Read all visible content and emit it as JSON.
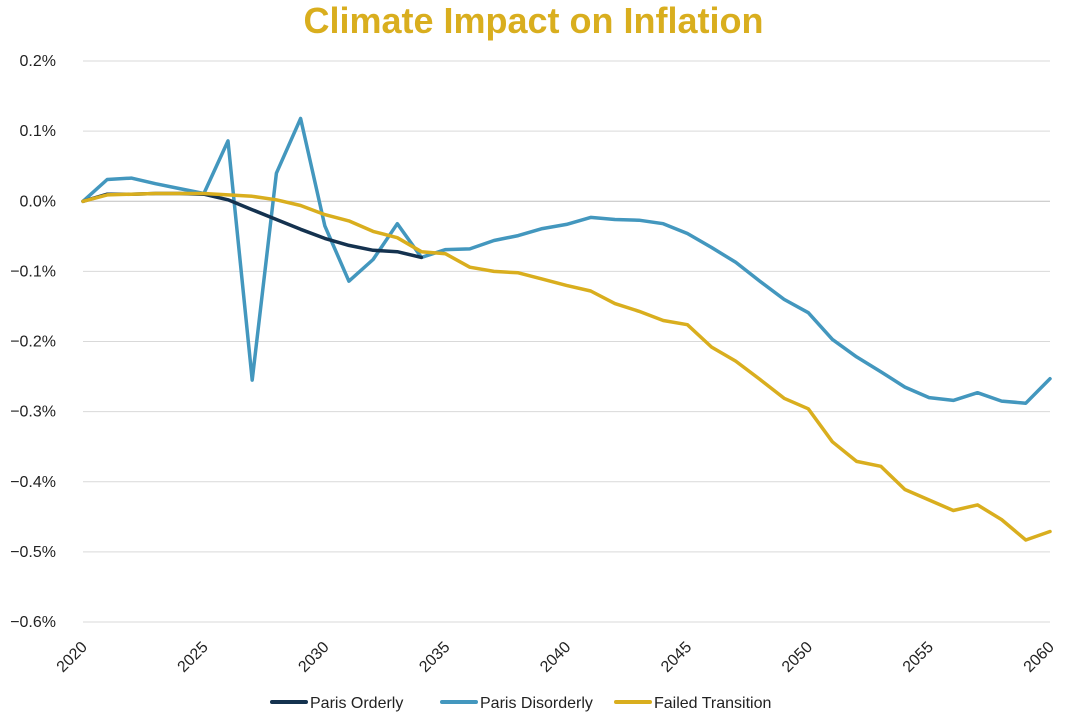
{
  "chart_data": {
    "type": "line",
    "title": "Climate Impact on Inflation",
    "xlabel": "",
    "ylabel": "",
    "xlim": [
      2020,
      2060
    ],
    "ylim": [
      -0.6,
      0.2
    ],
    "x_ticks": [
      2020,
      2025,
      2030,
      2035,
      2040,
      2045,
      2050,
      2055,
      2060
    ],
    "x_tick_labels": [
      "2020",
      "2025",
      "2030",
      "2035",
      "2040",
      "2045",
      "2050",
      "2055",
      "2060"
    ],
    "y_ticks": [
      0.2,
      0.1,
      0.0,
      -0.1,
      -0.2,
      -0.3,
      -0.4,
      -0.5,
      -0.6
    ],
    "y_tick_labels": [
      "0.2%",
      "0.1%",
      "0.0%",
      "−0.1%",
      "−0.2%",
      "−0.3%",
      "−0.4%",
      "−0.5%",
      "−0.6%"
    ],
    "grid": true,
    "legend_position": "bottom-center",
    "series": [
      {
        "name": "Paris Orderly",
        "color": "#14324F",
        "x": [
          2020,
          2021,
          2022,
          2023,
          2024,
          2025,
          2026,
          2027,
          2028,
          2029,
          2030,
          2031,
          2032,
          2033,
          2034
        ],
        "values": [
          0.0,
          0.01,
          0.01,
          0.011,
          0.011,
          0.01,
          0.002,
          -0.012,
          -0.026,
          -0.04,
          -0.053,
          -0.063,
          -0.07,
          -0.072,
          -0.08
        ]
      },
      {
        "name": "Paris Disorderly",
        "color": "#4397BE",
        "x": [
          2020,
          2021,
          2022,
          2023,
          2024,
          2025,
          2026,
          2027,
          2028,
          2029,
          2030,
          2031,
          2032,
          2033,
          2034,
          2035,
          2036,
          2037,
          2038,
          2039,
          2040,
          2041,
          2042,
          2043,
          2044,
          2045,
          2046,
          2047,
          2048,
          2049,
          2050,
          2051,
          2052,
          2053,
          2054,
          2055,
          2056,
          2057,
          2058,
          2059,
          2060
        ],
        "values": [
          0.0,
          0.031,
          0.033,
          0.025,
          0.018,
          0.011,
          0.086,
          -0.255,
          0.04,
          0.118,
          -0.035,
          -0.114,
          -0.083,
          -0.032,
          -0.08,
          -0.069,
          -0.068,
          -0.056,
          -0.049,
          -0.039,
          -0.033,
          -0.023,
          -0.026,
          -0.027,
          -0.032,
          -0.046,
          -0.066,
          -0.087,
          -0.114,
          -0.14,
          -0.159,
          -0.197,
          -0.222,
          -0.243,
          -0.265,
          -0.28,
          -0.284,
          -0.273,
          -0.285,
          -0.288,
          -0.253
        ]
      },
      {
        "name": "Failed Transition",
        "color": "#D9AE1E",
        "x": [
          2020,
          2021,
          2022,
          2023,
          2024,
          2025,
          2026,
          2027,
          2028,
          2029,
          2030,
          2031,
          2032,
          2033,
          2034,
          2035,
          2036,
          2037,
          2038,
          2039,
          2040,
          2041,
          2042,
          2043,
          2044,
          2045,
          2046,
          2047,
          2048,
          2049,
          2050,
          2051,
          2052,
          2053,
          2054,
          2055,
          2056,
          2057,
          2058,
          2059,
          2060
        ],
        "values": [
          0.0,
          0.009,
          0.01,
          0.011,
          0.011,
          0.011,
          0.009,
          0.007,
          0.002,
          -0.006,
          -0.019,
          -0.028,
          -0.043,
          -0.052,
          -0.072,
          -0.075,
          -0.094,
          -0.1,
          -0.102,
          -0.111,
          -0.12,
          -0.128,
          -0.146,
          -0.157,
          -0.17,
          -0.176,
          -0.208,
          -0.228,
          -0.254,
          -0.281,
          -0.296,
          -0.343,
          -0.371,
          -0.378,
          -0.411,
          -0.426,
          -0.441,
          -0.433,
          -0.454,
          -0.483,
          -0.471
        ]
      }
    ]
  }
}
